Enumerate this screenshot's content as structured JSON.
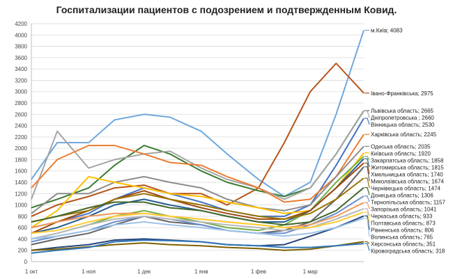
{
  "chart_data": {
    "type": "line",
    "title": "Госпитализации пациентов с подозрением и подтвержденным Ковид.",
    "xlabel": "",
    "ylabel": "",
    "ylim": [
      0,
      4200
    ],
    "yticks": [
      0,
      200,
      400,
      600,
      800,
      1000,
      1200,
      1400,
      1600,
      1800,
      2000,
      2200,
      2400,
      2600,
      2800,
      3000,
      3200,
      3400,
      3600,
      3800,
      4000,
      4200
    ],
    "xticks": [
      {
        "date": "2020-10-01",
        "label": "1 окт"
      },
      {
        "date": "2020-11-01",
        "label": "1 ноя"
      },
      {
        "date": "2020-12-01",
        "label": "1 дек"
      },
      {
        "date": "2021-01-01",
        "label": "1 янв"
      },
      {
        "date": "2021-02-01",
        "label": "1 фев"
      },
      {
        "date": "2021-03-01",
        "label": "1 мар"
      }
    ],
    "grid": true,
    "x": [
      "2020-10-01",
      "2020-10-15",
      "2020-11-01",
      "2020-11-15",
      "2020-12-01",
      "2020-12-15",
      "2021-01-01",
      "2021-01-15",
      "2021-02-01",
      "2021-02-15",
      "2021-03-01",
      "2021-03-15",
      "2021-03-30"
    ],
    "series": [
      {
        "label": "м.Київ; 4083",
        "color": "#6fa8dc",
        "values": [
          1450,
          2100,
          2100,
          2500,
          2600,
          2550,
          2300,
          1900,
          1450,
          1150,
          1400,
          2600,
          4083
        ]
      },
      {
        "label": "Івано-Франківська; 2975",
        "color": "#b5541a",
        "values": [
          800,
          1000,
          1150,
          1300,
          1350,
          1200,
          1200,
          1000,
          1300,
          2100,
          3000,
          3500,
          2975
        ]
      },
      {
        "label": "Львівська область; 2665",
        "color": "#3a7a30",
        "values": [
          950,
          1100,
          1300,
          1700,
          2050,
          1900,
          1600,
          1400,
          1250,
          1150,
          1300,
          1900,
          2665
        ]
      },
      {
        "label": "Дніпропетровська ; 2660",
        "color": "#a5a5a5",
        "values": [
          1100,
          2300,
          1650,
          1800,
          1900,
          1950,
          1650,
          1450,
          1300,
          1100,
          1300,
          1900,
          2660
        ]
      },
      {
        "label": "Вінницька область; 2530",
        "color": "#4472c4",
        "values": [
          600,
          700,
          850,
          1100,
          1300,
          1200,
          1050,
          900,
          800,
          800,
          1000,
          1700,
          2530
        ]
      },
      {
        "label": "Харківська область; 2245",
        "color": "#ed7d31",
        "values": [
          1300,
          1800,
          2050,
          2050,
          1900,
          1750,
          1700,
          1500,
          1300,
          1050,
          1100,
          1500,
          2245
        ]
      },
      {
        "label": "Одеська область; 2035",
        "color": "#8c8c8c",
        "values": [
          850,
          1200,
          1200,
          1400,
          1500,
          1400,
          1300,
          1100,
          950,
          900,
          1000,
          1500,
          2035
        ]
      },
      {
        "label": "Київська область; 1920",
        "color": "#ffc000",
        "values": [
          600,
          900,
          1500,
          1400,
          1300,
          1200,
          1150,
          1050,
          950,
          850,
          900,
          1300,
          1920
        ]
      },
      {
        "label": "Закарпатська область; 1858",
        "color": "#70ad47",
        "values": [
          400,
          500,
          650,
          800,
          900,
          800,
          700,
          600,
          550,
          650,
          900,
          1400,
          1858
        ]
      },
      {
        "label": "Житомирська область; 1815",
        "color": "#255e91",
        "values": [
          500,
          600,
          800,
          1000,
          1100,
          1000,
          900,
          800,
          700,
          700,
          900,
          1300,
          1815
        ]
      },
      {
        "label": "Хмельницька область; 1740",
        "color": "#9e480e",
        "values": [
          500,
          700,
          900,
          1100,
          1250,
          1100,
          950,
          850,
          750,
          750,
          900,
          1300,
          1740
        ]
      },
      {
        "label": "Миколаївська область; 1674",
        "color": "#636363",
        "values": [
          300,
          400,
          500,
          650,
          800,
          700,
          650,
          550,
          500,
          550,
          700,
          1100,
          1674
        ]
      },
      {
        "label": "Чернівецька область; 1474",
        "color": "#997300",
        "values": [
          700,
          800,
          900,
          1100,
          1200,
          1100,
          1000,
          900,
          800,
          750,
          850,
          1100,
          1474
        ]
      },
      {
        "label": "Донецька область; 1306",
        "color": "#43682b",
        "values": [
          700,
          800,
          950,
          1050,
          1050,
          950,
          900,
          800,
          700,
          650,
          700,
          900,
          1306
        ]
      },
      {
        "label": "Тернопільська область; 1157",
        "color": "#698ed0",
        "values": [
          350,
          450,
          550,
          700,
          800,
          750,
          650,
          550,
          500,
          500,
          650,
          850,
          1157
        ]
      },
      {
        "label": "Запорізька область; 1041",
        "color": "#f1975a",
        "values": [
          600,
          700,
          800,
          850,
          850,
          800,
          750,
          700,
          650,
          600,
          650,
          800,
          1041
        ]
      },
      {
        "label": "Черкаська область; 933",
        "color": "#b7b7b7",
        "values": [
          400,
          500,
          650,
          750,
          800,
          750,
          700,
          650,
          600,
          550,
          600,
          750,
          933
        ]
      },
      {
        "label": "Полтавська область; 873",
        "color": "#ffcd33",
        "values": [
          500,
          550,
          700,
          800,
          850,
          800,
          750,
          700,
          650,
          600,
          600,
          700,
          873
        ]
      },
      {
        "label": "Рівненська область; 806",
        "color": "#264478",
        "values": [
          200,
          250,
          300,
          380,
          400,
          380,
          350,
          300,
          280,
          300,
          450,
          600,
          806
        ]
      },
      {
        "label": "Волинська область; 765",
        "color": "#9dc3e6",
        "values": [
          400,
          450,
          550,
          650,
          700,
          650,
          600,
          550,
          500,
          450,
          500,
          600,
          765
        ]
      },
      {
        "label": "Херсонська область; 351",
        "color": "#7f6000",
        "values": [
          200,
          220,
          260,
          300,
          330,
          300,
          280,
          250,
          230,
          200,
          220,
          280,
          351
        ]
      },
      {
        "label": "Кіровоградська область; 318",
        "color": "#2e75b6",
        "values": [
          150,
          200,
          250,
          350,
          380,
          370,
          350,
          300,
          280,
          250,
          250,
          280,
          318
        ]
      }
    ]
  }
}
